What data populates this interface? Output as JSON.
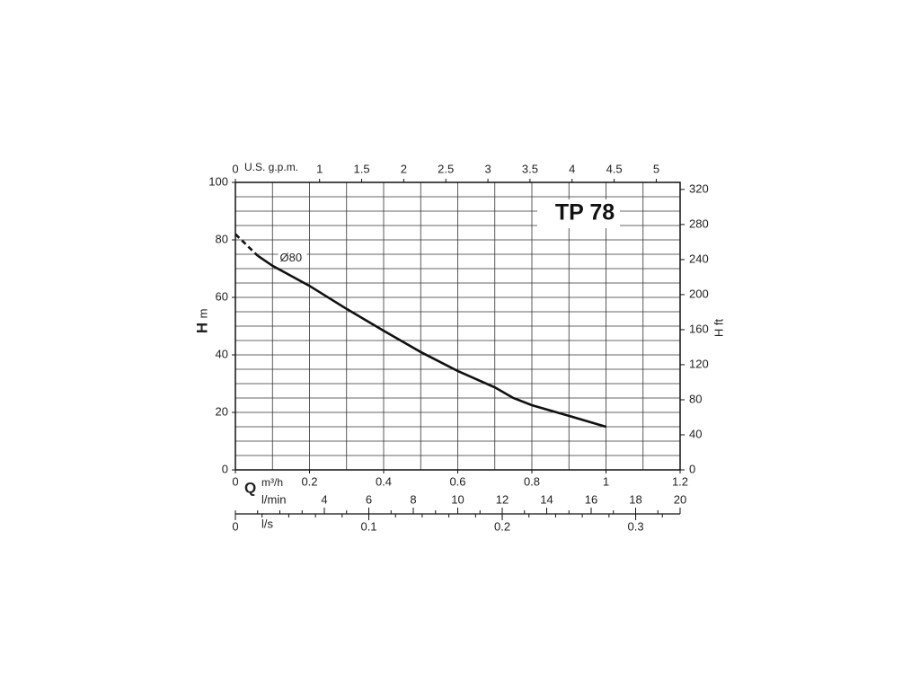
{
  "chart_data": {
    "type": "line",
    "title": "TP 78",
    "ylabel_symbol": "H",
    "ylabel_unit": "m",
    "y2label": "H ft",
    "xlabel_symbol": "Q",
    "xlabel": "m³/h",
    "xlim": [
      0,
      1.2
    ],
    "xticks": [
      0,
      0.2,
      0.4,
      0.6,
      0.8,
      1,
      1.2
    ],
    "xgrid": [
      0.1,
      0.2,
      0.3,
      0.4,
      0.5,
      0.6,
      0.7,
      0.8,
      0.9,
      1,
      1.1
    ],
    "ylim": [
      0,
      100
    ],
    "yticks": [
      0,
      20,
      40,
      60,
      80,
      100
    ],
    "ygrid": [
      5,
      10,
      15,
      20,
      25,
      30,
      35,
      40,
      45,
      50,
      55,
      60,
      65,
      70,
      75,
      80,
      85,
      90,
      95
    ],
    "y2lim": [
      0,
      328.084
    ],
    "y2ticks": [
      0,
      40,
      80,
      120,
      160,
      200,
      240,
      280,
      320
    ],
    "top_axis": {
      "label": "U.S. g.p.m.",
      "lim": [
        0,
        5.2834
      ],
      "ticks": [
        0,
        1,
        1.5,
        2,
        2.5,
        3,
        3.5,
        4,
        4.5,
        5
      ]
    },
    "lmin_axis": {
      "label": "l/min",
      "lim": [
        0,
        20
      ],
      "ticks": [
        4,
        6,
        8,
        10,
        12,
        14,
        16,
        18,
        20
      ],
      "minor_ticks": [
        0,
        1,
        2,
        3,
        4,
        5,
        6,
        7,
        8,
        9,
        10,
        11,
        12,
        13,
        14,
        15,
        16,
        17,
        18,
        19,
        20
      ]
    },
    "ls_axis": {
      "label": "l/s",
      "lim": [
        0,
        0.3333
      ],
      "ticks": [
        0,
        0.1,
        0.2,
        0.3
      ],
      "minor_ticks": [
        0,
        0.02,
        0.04,
        0.06,
        0.08,
        0.1,
        0.12,
        0.14,
        0.16,
        0.18,
        0.2,
        0.22,
        0.24,
        0.26,
        0.28,
        0.3,
        0.32
      ]
    },
    "series": [
      {
        "color": "#111111",
        "dashed": true,
        "x": [
          0,
          0.06
        ],
        "values": [
          82,
          74.5
        ]
      },
      {
        "color": "#111111",
        "dashed": false,
        "x": [
          0.06,
          0.1,
          0.2,
          0.3,
          0.4,
          0.5,
          0.6,
          0.7,
          0.75,
          0.8,
          0.9,
          1
        ],
        "values": [
          74.5,
          71,
          64,
          56,
          48.4,
          41,
          34.4,
          28.7,
          25,
          22.5,
          18.8,
          15
        ]
      }
    ],
    "annotations": [
      {
        "text": "Ø80",
        "x": 0.12,
        "y": 73.5
      }
    ]
  }
}
